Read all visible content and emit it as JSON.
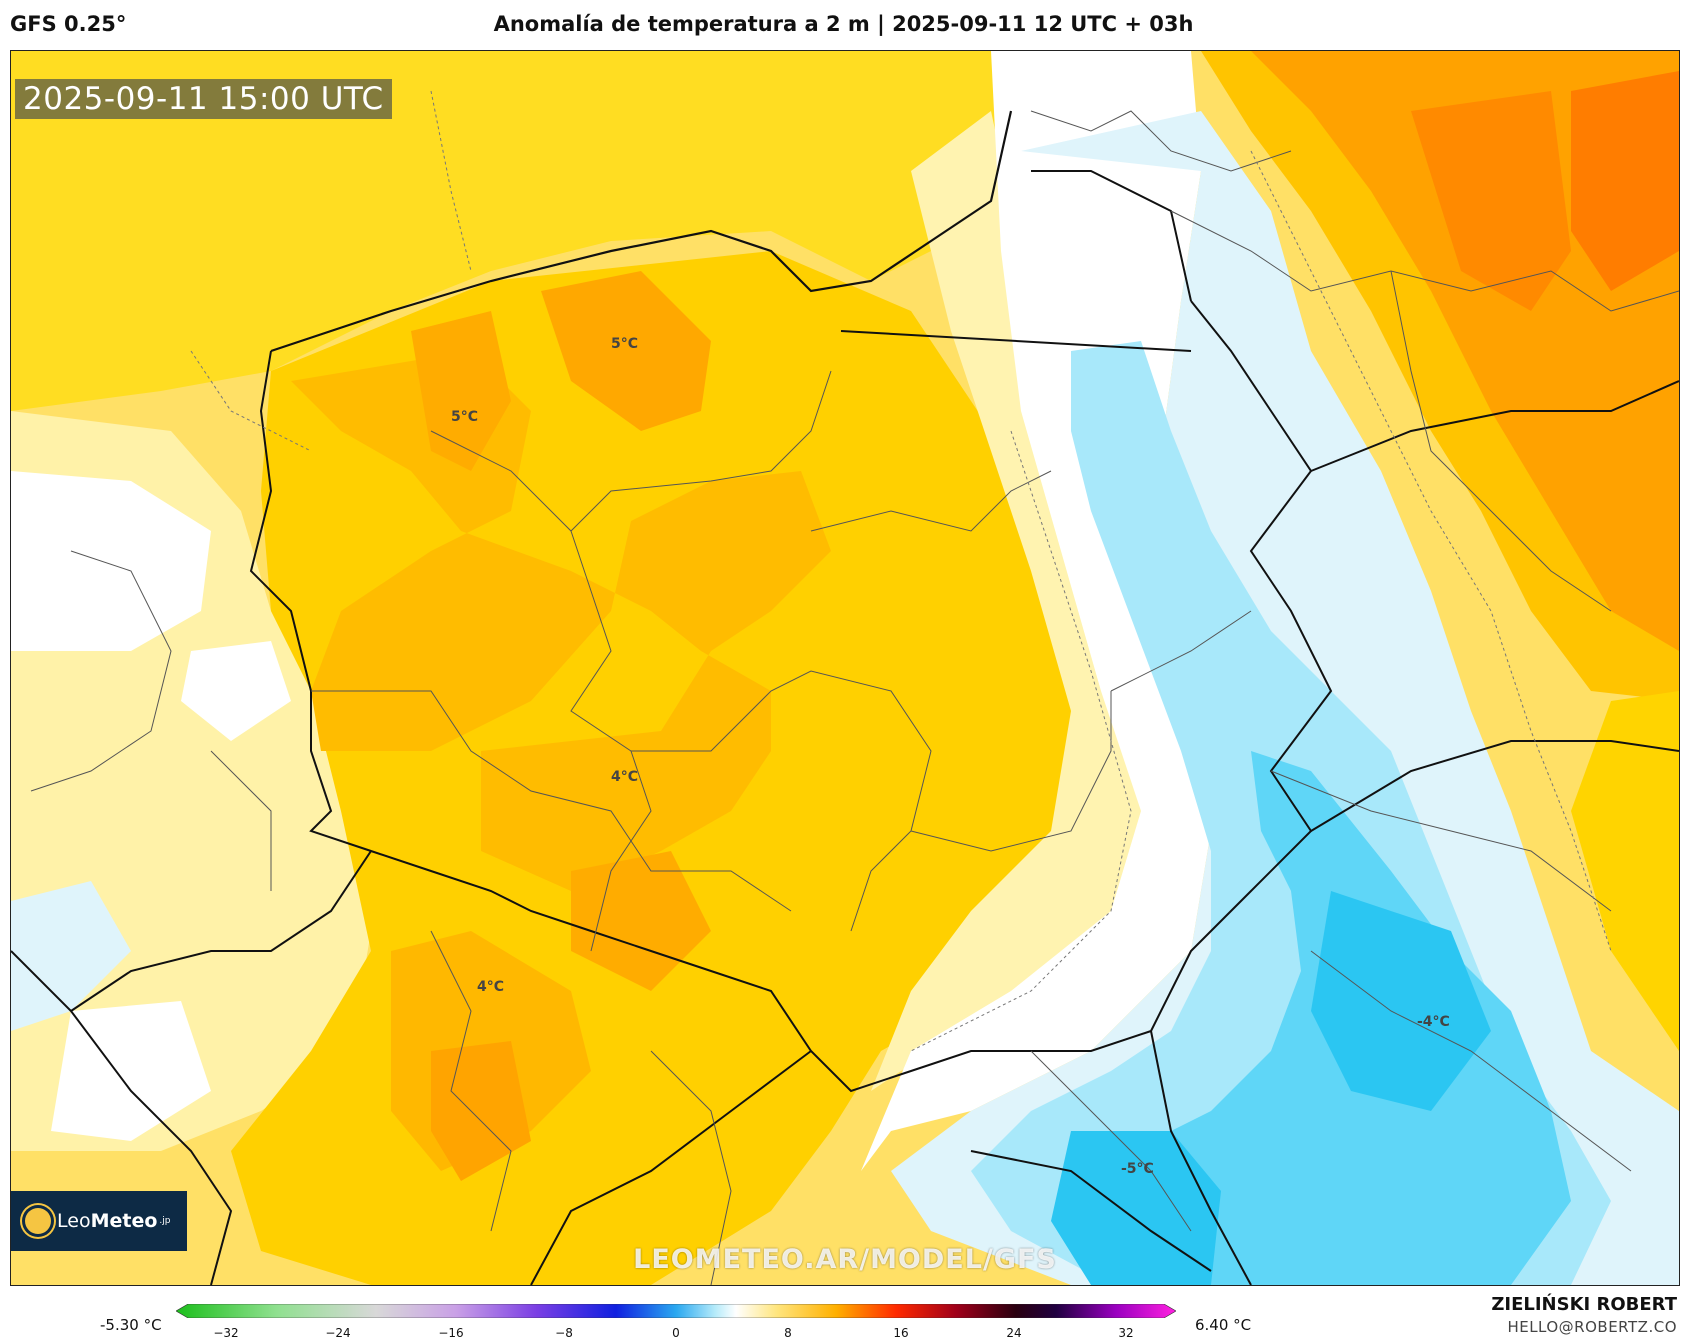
{
  "header": {
    "model": "GFS 0.25°",
    "title": "Anomalía de temperatura a 2 m | 2025-09-11 12 UTC + 03h"
  },
  "map": {
    "valid_time": "2025-09-11 15:00 UTC",
    "watermark": "LEOMETEO.AR/MODEL/GFS",
    "logo": {
      "prefix": "Leo",
      "bold": "Meteo",
      "suffix": ".jp"
    },
    "labels": [
      {
        "text": "5°C"
      },
      {
        "text": "5°C"
      },
      {
        "text": "4°C"
      },
      {
        "text": "4°C"
      },
      {
        "text": "-4°C"
      },
      {
        "text": "-5°C"
      }
    ]
  },
  "colorbar": {
    "min_label": "-5.30 °C",
    "max_label": "6.40 °C",
    "ticks": [
      "−32",
      "−24",
      "−16",
      "−8",
      "0",
      "8",
      "16",
      "24",
      "32"
    ]
  },
  "credits": {
    "author": "ZIELIŃSKI ROBERT",
    "email": "HELLO@ROBERTZ.CO"
  },
  "colors": {
    "warm_light": "#fff3b0",
    "warm_mid": "#ffd400",
    "warm_dark": "#ffbb00",
    "warm_orange": "#ffa000",
    "hot": "#ff8a00",
    "cool_light": "#e6f7fc",
    "cool_mid": "#a8e8fa",
    "cool_dark": "#2bc6f2"
  }
}
